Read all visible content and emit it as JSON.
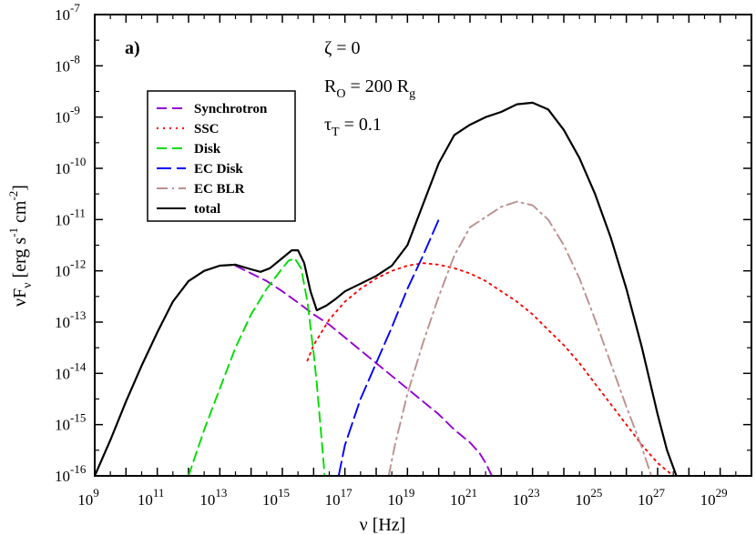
{
  "chart_data": {
    "type": "line",
    "panel_label": "a)",
    "xlabel": {
      "main": "ν [Hz]"
    },
    "ylabel": {
      "prefix": "νF",
      "sub": "ν",
      "units": " [erg s",
      "s_exp": "-1",
      "cm": " cm",
      "cm_exp": "-2",
      "close": "]"
    },
    "x_scale": "log",
    "y_scale": "log",
    "xlim_exp": [
      9,
      30
    ],
    "ylim_exp": [
      -16,
      -7
    ],
    "x_ticks": [
      {
        "base": "10",
        "exp": "9"
      },
      {
        "base": "10",
        "exp": "11"
      },
      {
        "base": "10",
        "exp": "13"
      },
      {
        "base": "10",
        "exp": "15"
      },
      {
        "base": "10",
        "exp": "17"
      },
      {
        "base": "10",
        "exp": "19"
      },
      {
        "base": "10",
        "exp": "21"
      },
      {
        "base": "10",
        "exp": "23"
      },
      {
        "base": "10",
        "exp": "25"
      },
      {
        "base": "10",
        "exp": "27"
      },
      {
        "base": "10",
        "exp": "29"
      }
    ],
    "y_ticks": [
      {
        "base": "10",
        "exp": "-16"
      },
      {
        "base": "10",
        "exp": "-15"
      },
      {
        "base": "10",
        "exp": "-14"
      },
      {
        "base": "10",
        "exp": "-13"
      },
      {
        "base": "10",
        "exp": "-12"
      },
      {
        "base": "10",
        "exp": "-11"
      },
      {
        "base": "10",
        "exp": "-10"
      },
      {
        "base": "10",
        "exp": "-9"
      },
      {
        "base": "10",
        "exp": "-8"
      },
      {
        "base": "10",
        "exp": "-7"
      }
    ],
    "annotations": [
      {
        "main": "ζ = 0",
        "sub": "",
        "rest": ""
      },
      {
        "main": "R",
        "sub": "O",
        "rest": " = 200 R",
        "sub2": "g"
      },
      {
        "main": "τ",
        "sub": "T",
        "rest": " = 0.1"
      }
    ],
    "legend_position": "upper-left",
    "series": [
      {
        "name": "Synchrotron",
        "color": "#9400d3",
        "dash": "dash",
        "log_x": [
          13.5,
          14,
          14.5,
          15,
          15.5,
          16,
          16.5,
          17,
          17.5,
          18,
          18.5,
          19,
          19.5,
          20,
          20.5,
          21,
          21.3,
          21.5,
          21.7
        ],
        "log_y": [
          -11.9,
          -12.05,
          -12.2,
          -12.4,
          -12.62,
          -12.85,
          -13.05,
          -13.3,
          -13.55,
          -13.8,
          -14.05,
          -14.3,
          -14.55,
          -14.8,
          -15.1,
          -15.35,
          -15.55,
          -15.75,
          -16.0
        ]
      },
      {
        "name": "SSC",
        "color": "#ff0000",
        "dash": "dot",
        "log_x": [
          15.8,
          16,
          16.5,
          17,
          17.5,
          18,
          18.5,
          19,
          19.5,
          20,
          20.5,
          21,
          21.5,
          22,
          22.5,
          23,
          23.5,
          24,
          24.5,
          25,
          25.5,
          26,
          26.5,
          27,
          27.5
        ],
        "log_y": [
          -13.75,
          -13.45,
          -12.95,
          -12.6,
          -12.35,
          -12.15,
          -12.0,
          -11.9,
          -11.85,
          -11.88,
          -11.95,
          -12.05,
          -12.2,
          -12.4,
          -12.6,
          -12.85,
          -13.15,
          -13.45,
          -13.8,
          -14.2,
          -14.6,
          -15.0,
          -15.4,
          -15.75,
          -16.0
        ]
      },
      {
        "name": "Disk",
        "color": "#00dd00",
        "dash": "dash",
        "log_x": [
          12.0,
          12.5,
          13,
          13.5,
          14,
          14.5,
          15,
          15.2,
          15.4,
          15.6,
          15.8,
          16.0,
          16.1,
          16.2,
          16.3,
          16.35
        ],
        "log_y": [
          -16.0,
          -15.1,
          -14.3,
          -13.5,
          -12.85,
          -12.35,
          -11.95,
          -11.8,
          -11.76,
          -11.95,
          -12.6,
          -13.6,
          -14.2,
          -14.9,
          -15.6,
          -16.0
        ]
      },
      {
        "name": "EC Disk",
        "color": "#0000ff",
        "dash": "longdash",
        "log_x": [
          16.8,
          17,
          17.5,
          18,
          18.5,
          19,
          19.5,
          20.0
        ],
        "log_y": [
          -16.0,
          -15.4,
          -14.5,
          -13.8,
          -13.1,
          -12.35,
          -11.7,
          -11.0
        ]
      },
      {
        "name": "EC BLR",
        "color": "#bc8f8f",
        "dash": "dashdot",
        "log_x": [
          18.4,
          18.6,
          19,
          19.5,
          20,
          20.5,
          21,
          21.5,
          22,
          22.5,
          23,
          23.5,
          24,
          24.5,
          25,
          25.5,
          26,
          26.5,
          26.8
        ],
        "log_y": [
          -16.0,
          -15.4,
          -14.4,
          -13.4,
          -12.5,
          -11.7,
          -11.15,
          -10.95,
          -10.75,
          -10.65,
          -10.72,
          -11.0,
          -11.5,
          -12.15,
          -12.95,
          -13.8,
          -14.65,
          -15.45,
          -16.0
        ]
      },
      {
        "name": "total",
        "color": "#000000",
        "dash": "solid",
        "log_x": [
          9.0,
          9.5,
          10,
          10.5,
          11,
          11.5,
          12,
          12.5,
          13,
          13.5,
          14,
          14.3,
          14.6,
          15,
          15.3,
          15.5,
          15.7,
          15.9,
          16.1,
          16.4,
          16.7,
          17,
          17.5,
          18,
          18.5,
          19,
          19.5,
          20,
          20.5,
          21,
          21.5,
          22,
          22.5,
          23,
          23.5,
          24,
          24.5,
          25,
          25.5,
          26,
          26.5,
          27,
          27.3,
          27.6
        ],
        "log_y": [
          -16.0,
          -15.3,
          -14.55,
          -13.85,
          -13.2,
          -12.6,
          -12.2,
          -12.0,
          -11.9,
          -11.88,
          -11.97,
          -12.02,
          -11.95,
          -11.75,
          -11.6,
          -11.6,
          -11.85,
          -12.4,
          -12.77,
          -12.68,
          -12.55,
          -12.4,
          -12.25,
          -12.1,
          -11.9,
          -11.5,
          -10.7,
          -9.9,
          -9.35,
          -9.15,
          -9.0,
          -8.9,
          -8.75,
          -8.72,
          -8.85,
          -9.25,
          -9.8,
          -10.5,
          -11.35,
          -12.35,
          -13.5,
          -14.8,
          -15.5,
          -16.0
        ]
      }
    ]
  }
}
